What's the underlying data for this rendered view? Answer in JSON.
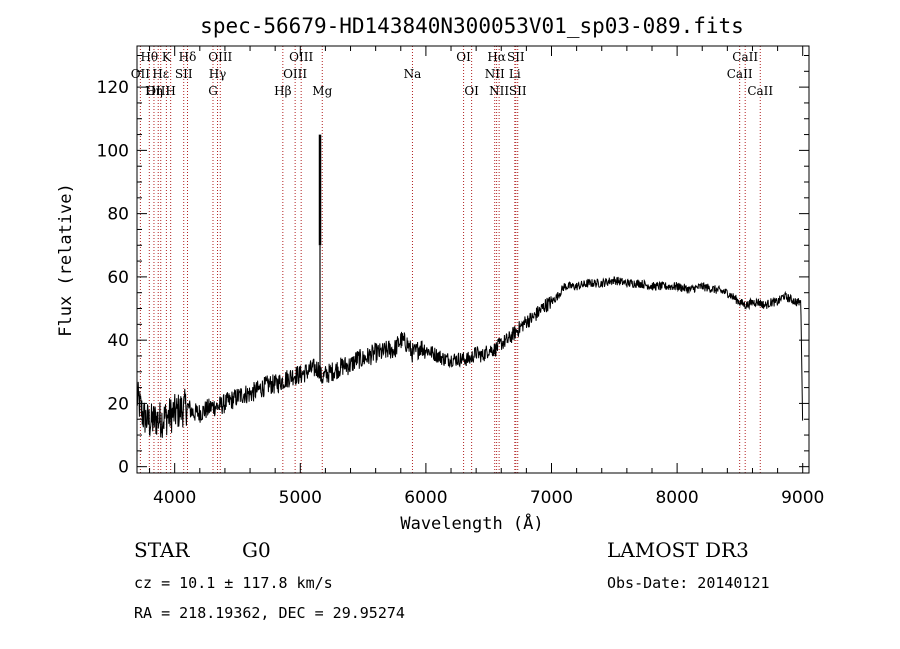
{
  "chart_data": {
    "type": "line",
    "title": "spec-56679-HD143840N300053V01_sp03-089.fits",
    "xlabel": "Wavelength (Å)",
    "ylabel": "Flux (relative)",
    "xlim": [
      3700,
      9050
    ],
    "ylim": [
      -2,
      133
    ],
    "xticks": [
      4000,
      5000,
      6000,
      7000,
      8000,
      9000
    ],
    "yticks": [
      0,
      20,
      40,
      60,
      80,
      100,
      120
    ],
    "series": [
      {
        "name": "flux",
        "x": [
          3700,
          3750,
          3800,
          3850,
          3900,
          3950,
          4000,
          4050,
          4100,
          4150,
          4200,
          4250,
          4300,
          4350,
          4400,
          4450,
          4500,
          4550,
          4600,
          4650,
          4700,
          4750,
          4800,
          4850,
          4900,
          4950,
          5000,
          5050,
          5100,
          5130,
          5150,
          5160,
          5170,
          5200,
          5250,
          5300,
          5350,
          5400,
          5450,
          5500,
          5550,
          5600,
          5650,
          5700,
          5750,
          5800,
          5850,
          5890,
          5920,
          5950,
          6000,
          6050,
          6100,
          6150,
          6200,
          6250,
          6300,
          6350,
          6400,
          6450,
          6500,
          6550,
          6600,
          6650,
          6700,
          6750,
          6800,
          6850,
          6900,
          6950,
          7000,
          7050,
          7100,
          7200,
          7300,
          7400,
          7500,
          7600,
          7700,
          7800,
          7900,
          8000,
          8100,
          8200,
          8300,
          8400,
          8500,
          8550,
          8600,
          8650,
          8700,
          8750,
          8800,
          8850,
          8900,
          8950,
          8980,
          9000
        ],
        "y": [
          22,
          16,
          14,
          15,
          15,
          16,
          17,
          18,
          19,
          17,
          17,
          18,
          19,
          19,
          20,
          21,
          22,
          23,
          23,
          24,
          25,
          26,
          26,
          27,
          28,
          29,
          29,
          30,
          31,
          31,
          31,
          29,
          28,
          29,
          30,
          31,
          32,
          32,
          34,
          34,
          35,
          36,
          36,
          37,
          37,
          40,
          39,
          36,
          36,
          38,
          37,
          36,
          35,
          34,
          34,
          34,
          34,
          34,
          36,
          35,
          37,
          37,
          39,
          40,
          42,
          44,
          46,
          47,
          49,
          51,
          52,
          54,
          57,
          57,
          58,
          58,
          59,
          58,
          58,
          57,
          57,
          57,
          56,
          57,
          56,
          55,
          52,
          51,
          52,
          52,
          51,
          52,
          52,
          54,
          53,
          52,
          52,
          50
        ]
      }
    ],
    "emission_spike": {
      "x": 5157,
      "y_min": 70,
      "y_max": 105
    },
    "spectral_lines": [
      {
        "label": "Hθ",
        "x": 3798,
        "row": 1
      },
      {
        "label": "OII",
        "x": 3727,
        "row": 2
      },
      {
        "label": "OIII",
        "x": 3869,
        "row": 3
      },
      {
        "label": "Hε",
        "x": 3889,
        "row": 2
      },
      {
        "label": "Hη",
        "x": 3835,
        "row": 3
      },
      {
        "label": "K",
        "x": 3934,
        "row": 1
      },
      {
        "label": "H",
        "x": 3968,
        "row": 3
      },
      {
        "label": "SII",
        "x": 4072,
        "row": 2
      },
      {
        "label": "Hδ",
        "x": 4102,
        "row": 1
      },
      {
        "label": "OIII",
        "x": 4363,
        "row": 1
      },
      {
        "label": "Hγ",
        "x": 4341,
        "row": 2
      },
      {
        "label": "G",
        "x": 4305,
        "row": 3
      },
      {
        "label": "OIII",
        "x": 5007,
        "row": 1
      },
      {
        "label": "OIII",
        "x": 4959,
        "row": 2
      },
      {
        "label": "Hβ",
        "x": 4861,
        "row": 3
      },
      {
        "label": "Mg",
        "x": 5175,
        "row": 3
      },
      {
        "label": "Na",
        "x": 5893,
        "row": 2
      },
      {
        "label": "OI",
        "x": 6300,
        "row": 1
      },
      {
        "label": "OI",
        "x": 6364,
        "row": 3
      },
      {
        "label": "Hα",
        "x": 6563,
        "row": 1
      },
      {
        "label": "NII",
        "x": 6548,
        "row": 2
      },
      {
        "label": "NII",
        "x": 6583,
        "row": 3
      },
      {
        "label": "SII",
        "x": 6716,
        "row": 1
      },
      {
        "label": "Li",
        "x": 6708,
        "row": 2
      },
      {
        "label": "SII",
        "x": 6731,
        "row": 3
      },
      {
        "label": "CaII",
        "x": 8542,
        "row": 1
      },
      {
        "label": "CaII",
        "x": 8498,
        "row": 2
      },
      {
        "label": "CaII",
        "x": 8662,
        "row": 3
      }
    ]
  },
  "info": {
    "object_class": "STAR",
    "subclass": "G0",
    "survey": "LAMOST DR3",
    "redshift": "cz = 10.1 ± 117.8 km/s",
    "obs_date": "Obs-Date: 20140121",
    "coords": "RA = 218.19362, DEC =  29.95274"
  },
  "colors": {
    "line": "#000000",
    "marker_line": "#b22222",
    "background": "#ffffff"
  }
}
